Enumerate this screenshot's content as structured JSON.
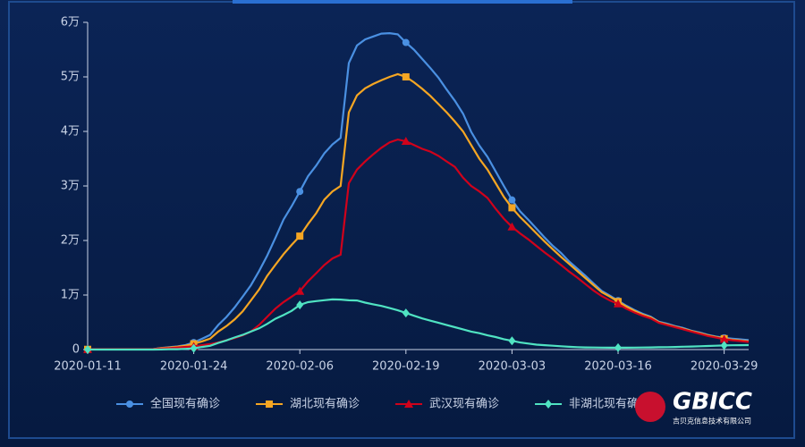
{
  "chart_data": {
    "type": "line",
    "categories": [
      "2020-01-11",
      null,
      null,
      null,
      null,
      null,
      null,
      null,
      null,
      null,
      null,
      null,
      null,
      "2020-01-24",
      null,
      null,
      null,
      null,
      null,
      null,
      null,
      null,
      null,
      null,
      null,
      null,
      "2020-02-06",
      null,
      null,
      null,
      null,
      null,
      null,
      null,
      null,
      null,
      null,
      null,
      null,
      "2020-02-19",
      null,
      null,
      null,
      null,
      null,
      null,
      null,
      null,
      null,
      null,
      null,
      null,
      "2020-03-03",
      null,
      null,
      null,
      null,
      null,
      null,
      null,
      null,
      null,
      null,
      null,
      null,
      "2020-03-16",
      null,
      null,
      null,
      null,
      null,
      null,
      null,
      null,
      null,
      null,
      null,
      null,
      "2020-03-29",
      null,
      null,
      null
    ],
    "series": [
      {
        "name": "全国现有确诊",
        "color": "#4a90e2",
        "marker": "circle",
        "values": [
          41,
          41,
          41,
          41,
          41,
          41,
          41,
          45,
          62,
          291,
          440,
          571,
          830,
          1287,
          1975,
          2684,
          4515,
          5974,
          7711,
          9692,
          11791,
          14380,
          17205,
          20438,
          23836,
          26302,
          28985,
          31774,
          33738,
          35982,
          37626,
          38800,
          52526,
          55748,
          56873,
          57416,
          57934,
          58016,
          57805,
          56303,
          54965,
          53284,
          51606,
          49824,
          47672,
          45604,
          43258,
          39919,
          37414,
          35329,
          32652,
          30004,
          27433,
          25352,
          23784,
          22177,
          20533,
          19016,
          17721,
          16145,
          14831,
          13526,
          12094,
          10734,
          9893,
          8967,
          8056,
          7263,
          6569,
          6013,
          5120,
          4735,
          4287,
          3947,
          3460,
          3128,
          2691,
          2396,
          2161,
          2004,
          1863,
          1727
        ]
      },
      {
        "name": "湖北现有确诊",
        "color": "#f5a623",
        "marker": "square",
        "values": [
          41,
          41,
          41,
          41,
          41,
          41,
          41,
          45,
          62,
          270,
          375,
          500,
          700,
          1052,
          1500,
          2000,
          3300,
          4300,
          5500,
          7000,
          9000,
          11000,
          13500,
          15500,
          17500,
          19200,
          20800,
          23000,
          25000,
          27500,
          29000,
          30000,
          43500,
          46600,
          47900,
          48700,
          49400,
          50000,
          50500,
          50000,
          49000,
          47800,
          46500,
          45000,
          43500,
          41800,
          40000,
          37500,
          35000,
          33000,
          30500,
          28000,
          26000,
          24300,
          22800,
          21300,
          19800,
          18400,
          17000,
          15700,
          14400,
          13100,
          11800,
          10500,
          9700,
          8800,
          7900,
          7100,
          6400,
          5900,
          5000,
          4600,
          4200,
          3800,
          3400,
          3000,
          2600,
          2300,
          2000,
          1800,
          1650,
          1500
        ]
      },
      {
        "name": "武汉现有确诊",
        "color": "#d0021b",
        "marker": "triangle",
        "values": [
          41,
          41,
          41,
          41,
          41,
          41,
          41,
          45,
          60,
          200,
          270,
          380,
          495,
          572,
          800,
          1000,
          1300,
          1700,
          2100,
          2600,
          3300,
          4500,
          6000,
          7500,
          8700,
          9700,
          10700,
          12500,
          14000,
          15500,
          16700,
          17400,
          30500,
          33000,
          34500,
          35800,
          37000,
          38000,
          38500,
          38200,
          37500,
          36800,
          36300,
          35500,
          34500,
          33500,
          31500,
          30000,
          29000,
          27800,
          25800,
          24000,
          22500,
          21300,
          20200,
          19000,
          17800,
          16700,
          15500,
          14300,
          13200,
          12000,
          10800,
          9800,
          9000,
          8400,
          7500,
          6800,
          6200,
          5700,
          4900,
          4500,
          4100,
          3700,
          3300,
          2900,
          2500,
          2200,
          1900,
          1700,
          1550,
          1400
        ]
      },
      {
        "name": "非湖北现有确诊",
        "color": "#50e3c2",
        "marker": "diamond",
        "values": [
          0,
          0,
          0,
          0,
          0,
          0,
          0,
          0,
          0,
          21,
          65,
          71,
          130,
          235,
          475,
          684,
          1215,
          1674,
          2211,
          2692,
          3291,
          3880,
          4705,
          5638,
          6336,
          7102,
          8185,
          8694,
          8890,
          9046,
          9200,
          9170,
          9026,
          9000,
          8600,
          8300,
          8000,
          7600,
          7200,
          6700,
          6200,
          5700,
          5300,
          4900,
          4500,
          4100,
          3700,
          3300,
          3000,
          2600,
          2300,
          1900,
          1600,
          1300,
          1100,
          900,
          800,
          700,
          600,
          500,
          450,
          400,
          380,
          360,
          350,
          350,
          350,
          360,
          380,
          400,
          420,
          450,
          480,
          520,
          560,
          600,
          650,
          700,
          750,
          780,
          800,
          820
        ]
      }
    ],
    "ylim": [
      0,
      60000
    ],
    "yticks": [
      0,
      {
        "value": 10000,
        "label": "1万"
      },
      {
        "value": 20000,
        "label": "2万"
      },
      {
        "value": 30000,
        "label": "3万"
      },
      {
        "value": 40000,
        "label": "4万"
      },
      {
        "value": 50000,
        "label": "5万"
      },
      {
        "value": 60000,
        "label": "6万"
      }
    ],
    "legend": "bottom"
  },
  "logo": {
    "text": "GBICC",
    "subtitle": "吉贝克信息技术有限公司"
  }
}
